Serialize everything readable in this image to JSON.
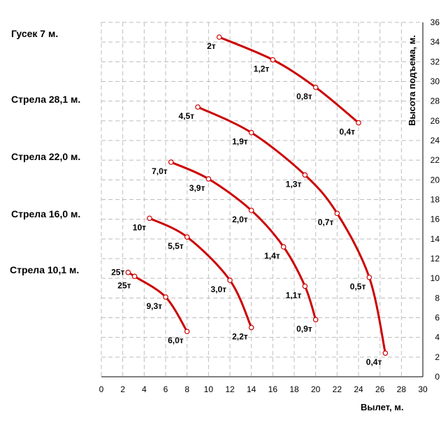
{
  "chart_data": {
    "type": "line",
    "xlabel": "Вылет, м.",
    "ylabel": "Высота подъема, м.",
    "xlim": [
      0,
      30
    ],
    "ylim": [
      0,
      36
    ],
    "xticks": [
      "0",
      "2",
      "4",
      "6",
      "8",
      "10",
      "12",
      "14",
      "16",
      "18",
      "20",
      "22",
      "24",
      "26",
      "28",
      "30"
    ],
    "yticks": [
      "0",
      "2",
      "4",
      "6",
      "8",
      "10",
      "12",
      "14",
      "16",
      "18",
      "20",
      "22",
      "24",
      "26",
      "28",
      "30",
      "32",
      "34",
      "36"
    ],
    "grid": true,
    "line_color": "#cc0000",
    "series": [
      {
        "name": "Гусек 7 м.",
        "points": [
          {
            "x": 11.0,
            "y": 34.5,
            "label": "2т"
          },
          {
            "x": 16.0,
            "y": 32.2,
            "label": "1,2т"
          },
          {
            "x": 20.0,
            "y": 29.4,
            "label": "0,8т"
          },
          {
            "x": 24.0,
            "y": 25.8,
            "label": "0,4т"
          }
        ]
      },
      {
        "name": "Стрела 28,1 м.",
        "points": [
          {
            "x": 9.0,
            "y": 27.4,
            "label": "4,5т"
          },
          {
            "x": 14.0,
            "y": 24.8,
            "label": "1,9т"
          },
          {
            "x": 19.0,
            "y": 20.5,
            "label": "1,3т"
          },
          {
            "x": 22.0,
            "y": 16.6,
            "label": "0,7т"
          },
          {
            "x": 25.0,
            "y": 10.1,
            "label": "0,5т"
          },
          {
            "x": 26.5,
            "y": 2.4,
            "label": "0,4т"
          }
        ]
      },
      {
        "name": "Стрела 22,0 м.",
        "points": [
          {
            "x": 6.5,
            "y": 21.8,
            "label": "7,0т"
          },
          {
            "x": 10.0,
            "y": 20.1,
            "label": "3,9т"
          },
          {
            "x": 14.0,
            "y": 16.9,
            "label": "2,0т"
          },
          {
            "x": 17.0,
            "y": 13.2,
            "label": "1,4т"
          },
          {
            "x": 19.0,
            "y": 9.2,
            "label": "1,1т"
          },
          {
            "x": 20.0,
            "y": 5.8,
            "label": "0,9т"
          }
        ]
      },
      {
        "name": "Стрела 16,0 м.",
        "points": [
          {
            "x": 4.5,
            "y": 16.1,
            "label": "10т"
          },
          {
            "x": 8.0,
            "y": 14.2,
            "label": "5,5т"
          },
          {
            "x": 12.0,
            "y": 9.8,
            "label": "3,0т"
          },
          {
            "x": 14.0,
            "y": 5.0,
            "label": "2,2т"
          }
        ]
      },
      {
        "name": "Стрела 10,1 м.",
        "points": [
          {
            "x": 2.5,
            "y": 10.6,
            "label": "25т"
          },
          {
            "x": 3.1,
            "y": 10.2,
            "label": "25т"
          },
          {
            "x": 6.0,
            "y": 8.1,
            "label": "9,3т"
          },
          {
            "x": 8.0,
            "y": 4.6,
            "label": "6,0т"
          }
        ]
      }
    ]
  }
}
